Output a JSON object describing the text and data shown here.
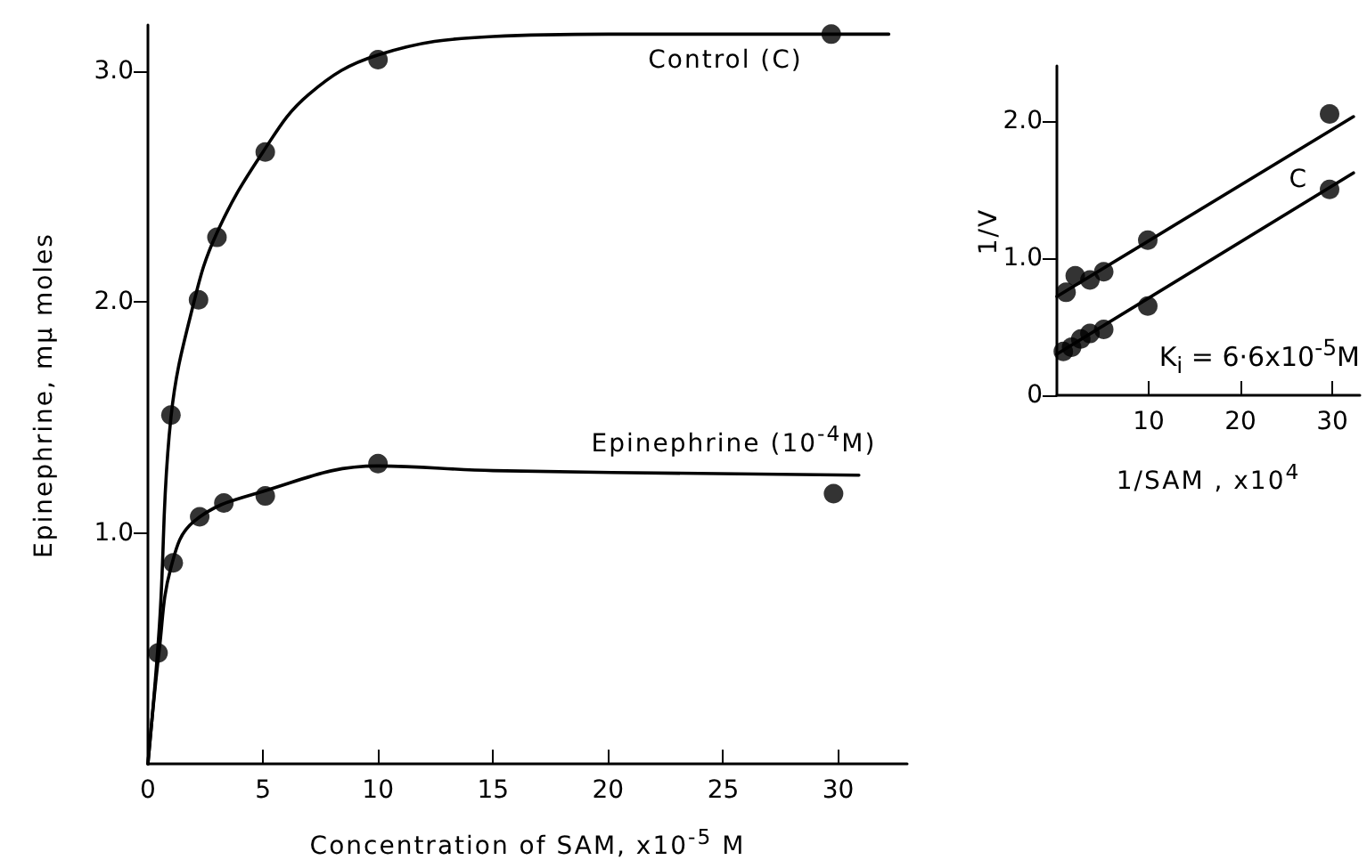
{
  "chart_data": [
    {
      "type": "scatter",
      "xlabel": "Concentration of SAM,  x10$^{-5}$ M",
      "ylabel": "Epinephrine,   mμ moles",
      "xlim": [
        0,
        33
      ],
      "ylim": [
        0,
        3.2
      ],
      "xticks": [
        0,
        5,
        10,
        15,
        20,
        25,
        30
      ],
      "yticks": [
        {
          "value": 1,
          "label": "1.0"
        },
        {
          "value": 2,
          "label": "2.0"
        },
        {
          "value": 3,
          "label": "3.0"
        }
      ],
      "grid": false,
      "legend": false,
      "marker": "circle",
      "series": [
        {
          "name": "Control (C)",
          "type": "scatter",
          "color": "#000000",
          "x": [
            0.44,
            1.0,
            2.2,
            3.0,
            5.1,
            10,
            29.7
          ],
          "values": [
            0.48,
            1.51,
            2.01,
            2.28,
            2.65,
            3.05,
            3.16
          ]
        },
        {
          "type": "line",
          "color": "#000000",
          "marker": "none",
          "x": [
            0,
            0.5,
            1,
            2,
            3,
            5,
            7,
            10,
            15,
            20,
            32.2
          ],
          "values": [
            0,
            0.6,
            1.5,
            2.0,
            2.3,
            2.65,
            2.9,
            3.07,
            3.15,
            3.16,
            3.16
          ]
        },
        {
          "name": "Epinephrine (10$^{-4}$M)",
          "type": "scatter",
          "color": "#000000",
          "x": [
            1.1,
            2.25,
            3.3,
            5.1,
            10,
            29.8
          ],
          "values": [
            0.87,
            1.07,
            1.13,
            1.16,
            1.3,
            1.17
          ]
        },
        {
          "type": "line",
          "color": "#000000",
          "marker": "none",
          "x": [
            0,
            0.5,
            1,
            2,
            5,
            10,
            15,
            30.9
          ],
          "values": [
            0,
            0.5,
            0.85,
            1.05,
            1.18,
            1.29,
            1.27,
            1.25
          ]
        }
      ]
    },
    {
      "type": "scatter",
      "xlabel": "1/SAM ,    x10$^{4}$",
      "ylabel": "1/V",
      "xlim": [
        0,
        33
      ],
      "ylim": [
        0,
        2.4
      ],
      "xticks": [
        10,
        20,
        30
      ],
      "yticks": [
        0,
        {
          "value": 1,
          "label": "1.0"
        },
        {
          "value": 2,
          "label": "2.0"
        }
      ],
      "grid": false,
      "legend": false,
      "marker": "circle",
      "annotations": [
        "K$_{i}$ = 6·6x10$^{-5}$M"
      ],
      "series": [
        {
          "type": "scatter",
          "color": "#000000",
          "x": [
            1.0,
            2.0,
            3.6,
            5.1,
            9.9,
            29.7
          ],
          "values": [
            0.75,
            0.87,
            0.84,
            0.9,
            1.13,
            2.05
          ]
        },
        {
          "type": "line",
          "color": "#000000",
          "marker": "none",
          "x": [
            0,
            32.3
          ],
          "values": [
            0.72,
            2.03
          ]
        },
        {
          "name": "C",
          "type": "scatter",
          "color": "#000000",
          "x": [
            0.7,
            1.6,
            2.6,
            3.6,
            5.1,
            9.9,
            29.7
          ],
          "values": [
            0.32,
            0.35,
            0.41,
            0.45,
            0.48,
            0.65,
            1.5
          ]
        },
        {
          "type": "line",
          "color": "#000000",
          "marker": "none",
          "x": [
            0,
            32.3
          ],
          "values": [
            0.3,
            1.62
          ]
        }
      ]
    }
  ]
}
